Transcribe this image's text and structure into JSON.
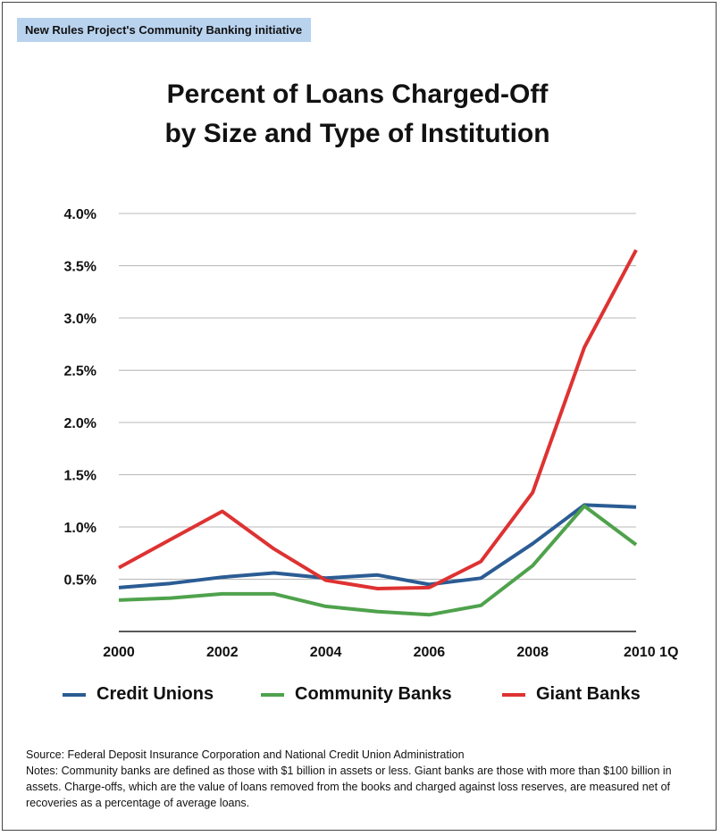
{
  "header_tag": "New Rules Project's Community Banking initiative",
  "title_lines": [
    "Percent of Loans Charged-Off",
    "by Size and Type of Institution"
  ],
  "source_text": "Source: Federal Deposit Insurance Corporation and National Credit Union Administration",
  "notes_text": "Notes:  Community banks are defined as those with $1 billion in assets or less. Giant banks are those with more than $100 billion in assets.  Charge-offs, which are the value of loans removed from the books and charged against loss reserves, are measured net of recoveries as a percentage of average loans.",
  "chart_data": {
    "type": "line",
    "x": [
      "2000",
      "2001",
      "2002",
      "2003",
      "2004",
      "2005",
      "2006",
      "2007",
      "2008",
      "2009",
      "2010 1Q"
    ],
    "x_tick_labels": [
      "2000",
      "2002",
      "2004",
      "2006",
      "2008",
      "2010 1Q"
    ],
    "y_tick_labels": [
      "0.5%",
      "1.0%",
      "1.5%",
      "2.0%",
      "2.5%",
      "3.0%",
      "3.5%",
      "4.0%"
    ],
    "ylim": [
      0,
      4.0
    ],
    "grid": true,
    "legend_position": "bottom",
    "series": [
      {
        "name": "Credit Unions",
        "color": "#2b5c94",
        "values": [
          0.42,
          0.46,
          0.52,
          0.56,
          0.51,
          0.54,
          0.45,
          0.51,
          0.84,
          1.21,
          1.19
        ]
      },
      {
        "name": "Community Banks",
        "color": "#4fa24c",
        "values": [
          0.3,
          0.32,
          0.36,
          0.36,
          0.24,
          0.19,
          0.16,
          0.25,
          0.63,
          1.2,
          0.83
        ]
      },
      {
        "name": "Giant Banks",
        "color": "#de3232",
        "values": [
          0.61,
          0.88,
          1.15,
          0.79,
          0.49,
          0.41,
          0.42,
          0.67,
          1.33,
          2.72,
          3.65
        ]
      }
    ]
  }
}
